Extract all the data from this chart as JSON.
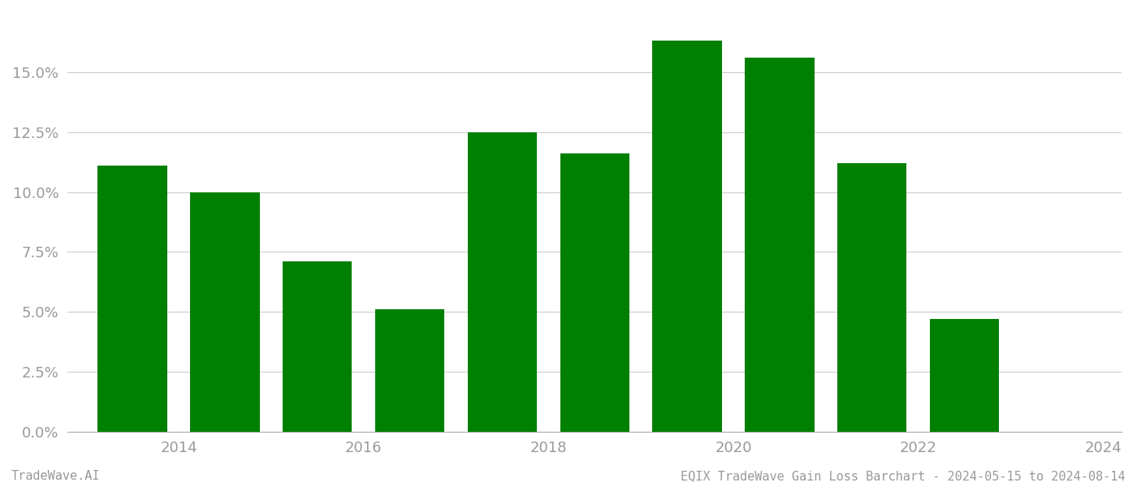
{
  "years": [
    2013,
    2014,
    2015,
    2016,
    2017,
    2018,
    2019,
    2020,
    2021,
    2022
  ],
  "values": [
    0.111,
    0.1,
    0.071,
    0.051,
    0.125,
    0.116,
    0.163,
    0.156,
    0.112,
    0.047
  ],
  "bar_color": "#008000",
  "background_color": "#ffffff",
  "ylim": [
    0,
    0.175
  ],
  "yticks": [
    0.0,
    0.025,
    0.05,
    0.075,
    0.1,
    0.125,
    0.15
  ],
  "ytick_labels": [
    "0.0%",
    "2.5%",
    "5.0%",
    "7.5%",
    "10.0%",
    "12.5%",
    "15.0%"
  ],
  "xtick_positions": [
    2013.5,
    2015.5,
    2017.5,
    2019.5,
    2021.5,
    2023.5
  ],
  "xtick_labels": [
    "2014",
    "2016",
    "2018",
    "2020",
    "2022",
    "2024"
  ],
  "xlim": [
    2012.3,
    2023.7
  ],
  "footer_left": "TradeWave.AI",
  "footer_right": "EQIX TradeWave Gain Loss Barchart - 2024-05-15 to 2024-08-14",
  "grid_color": "#cccccc",
  "tick_color": "#999999",
  "bar_width": 0.75
}
